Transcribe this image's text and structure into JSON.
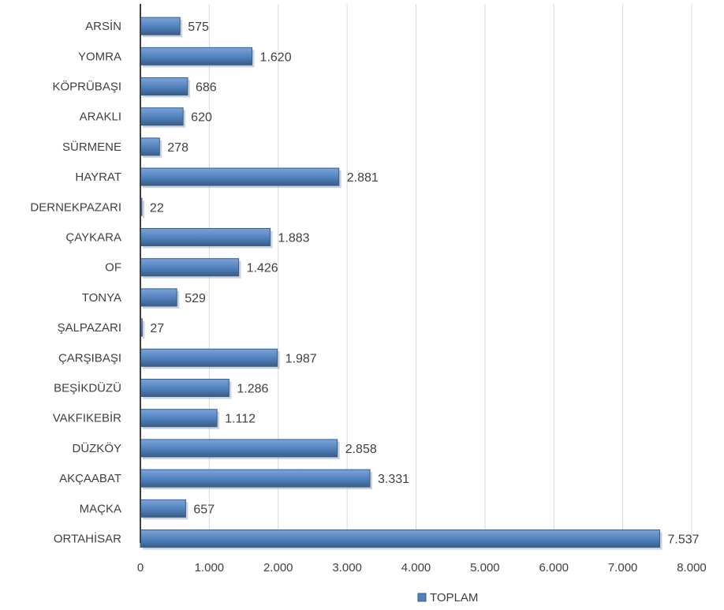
{
  "chart_data": {
    "type": "bar",
    "orientation": "horizontal",
    "categories": [
      "ARSİN",
      "YOMRA",
      "KÖPRÜBAŞI",
      "ARAKLI",
      "SÜRMENE",
      "HAYRAT",
      "DERNEKPAZARI",
      "ÇAYKARA",
      "OF",
      "TONYA",
      "ŞALPAZARI",
      "ÇARŞIBAŞI",
      "BEŞİKDÜZÜ",
      "VAKFIKEBİR",
      "DÜZKÖY",
      "AKÇAABAT",
      "MAÇKA",
      "ORTAHİSAR"
    ],
    "series": [
      {
        "name": "TOPLAM",
        "values": [
          575,
          1620,
          686,
          620,
          278,
          2881,
          22,
          1883,
          1426,
          529,
          27,
          1987,
          1286,
          1112,
          2858,
          3331,
          657,
          7537
        ],
        "value_labels": [
          "575",
          "1.620",
          "686",
          "620",
          "278",
          "2.881",
          "22",
          "1.883",
          "1.426",
          "529",
          "27",
          "1.987",
          "1.286",
          "1.112",
          "2.858",
          "3.331",
          "657",
          "7.537"
        ]
      }
    ],
    "xlim": [
      0,
      8000
    ],
    "xticks": [
      0,
      1000,
      2000,
      3000,
      4000,
      5000,
      6000,
      7000,
      8000
    ],
    "xtick_labels": [
      "0",
      "1.000",
      "2.000",
      "3.000",
      "4.000",
      "5.000",
      "6.000",
      "7.000",
      "8.000"
    ],
    "grid": true,
    "legend_position": "bottom",
    "colors": {
      "bar": "#4f81bd",
      "bar_dark": "#385d8a",
      "bar_light": "#7ea3d6"
    }
  }
}
